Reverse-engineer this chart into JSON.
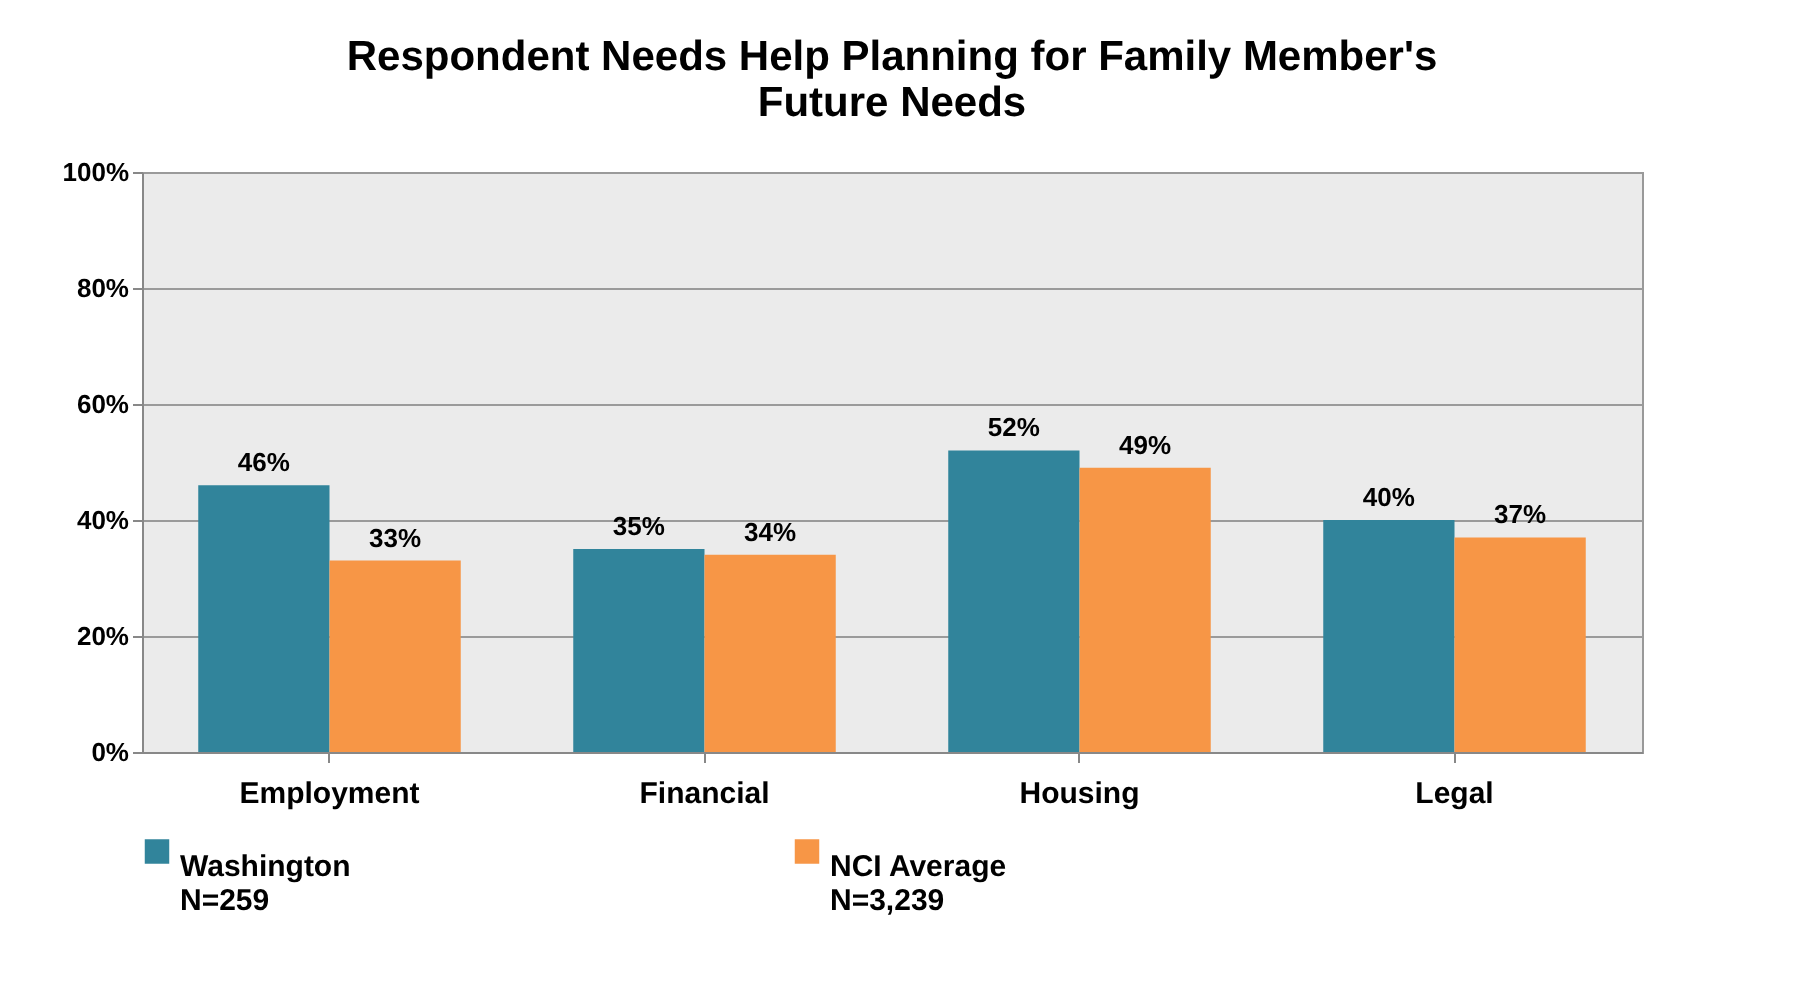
{
  "chart_data": {
    "type": "bar",
    "title": "Respondent Needs Help Planning for Family Member's\nFuture Needs",
    "categories": [
      "Employment",
      "Financial",
      "Housing",
      "Legal"
    ],
    "series": [
      {
        "name": "Washington\nN=259",
        "color": "#31849b",
        "values": [
          46,
          35,
          52,
          40
        ]
      },
      {
        "name": "NCI Average\nN=3,239",
        "color": "#f79646",
        "values": [
          33,
          34,
          49,
          37
        ]
      }
    ],
    "ylim": [
      0,
      100
    ],
    "yticks": [
      {
        "value": 0,
        "label": "0%"
      },
      {
        "value": 20,
        "label": "20%"
      },
      {
        "value": 40,
        "label": "40%"
      },
      {
        "value": 60,
        "label": "60%"
      },
      {
        "value": 80,
        "label": "80%"
      },
      {
        "value": 100,
        "label": "100%"
      }
    ],
    "value_labels": [
      [
        "46%",
        "35%",
        "52%",
        "40%"
      ],
      [
        "33%",
        "34%",
        "49%",
        "37%"
      ]
    ],
    "grid": "y",
    "legend": "bottom"
  }
}
